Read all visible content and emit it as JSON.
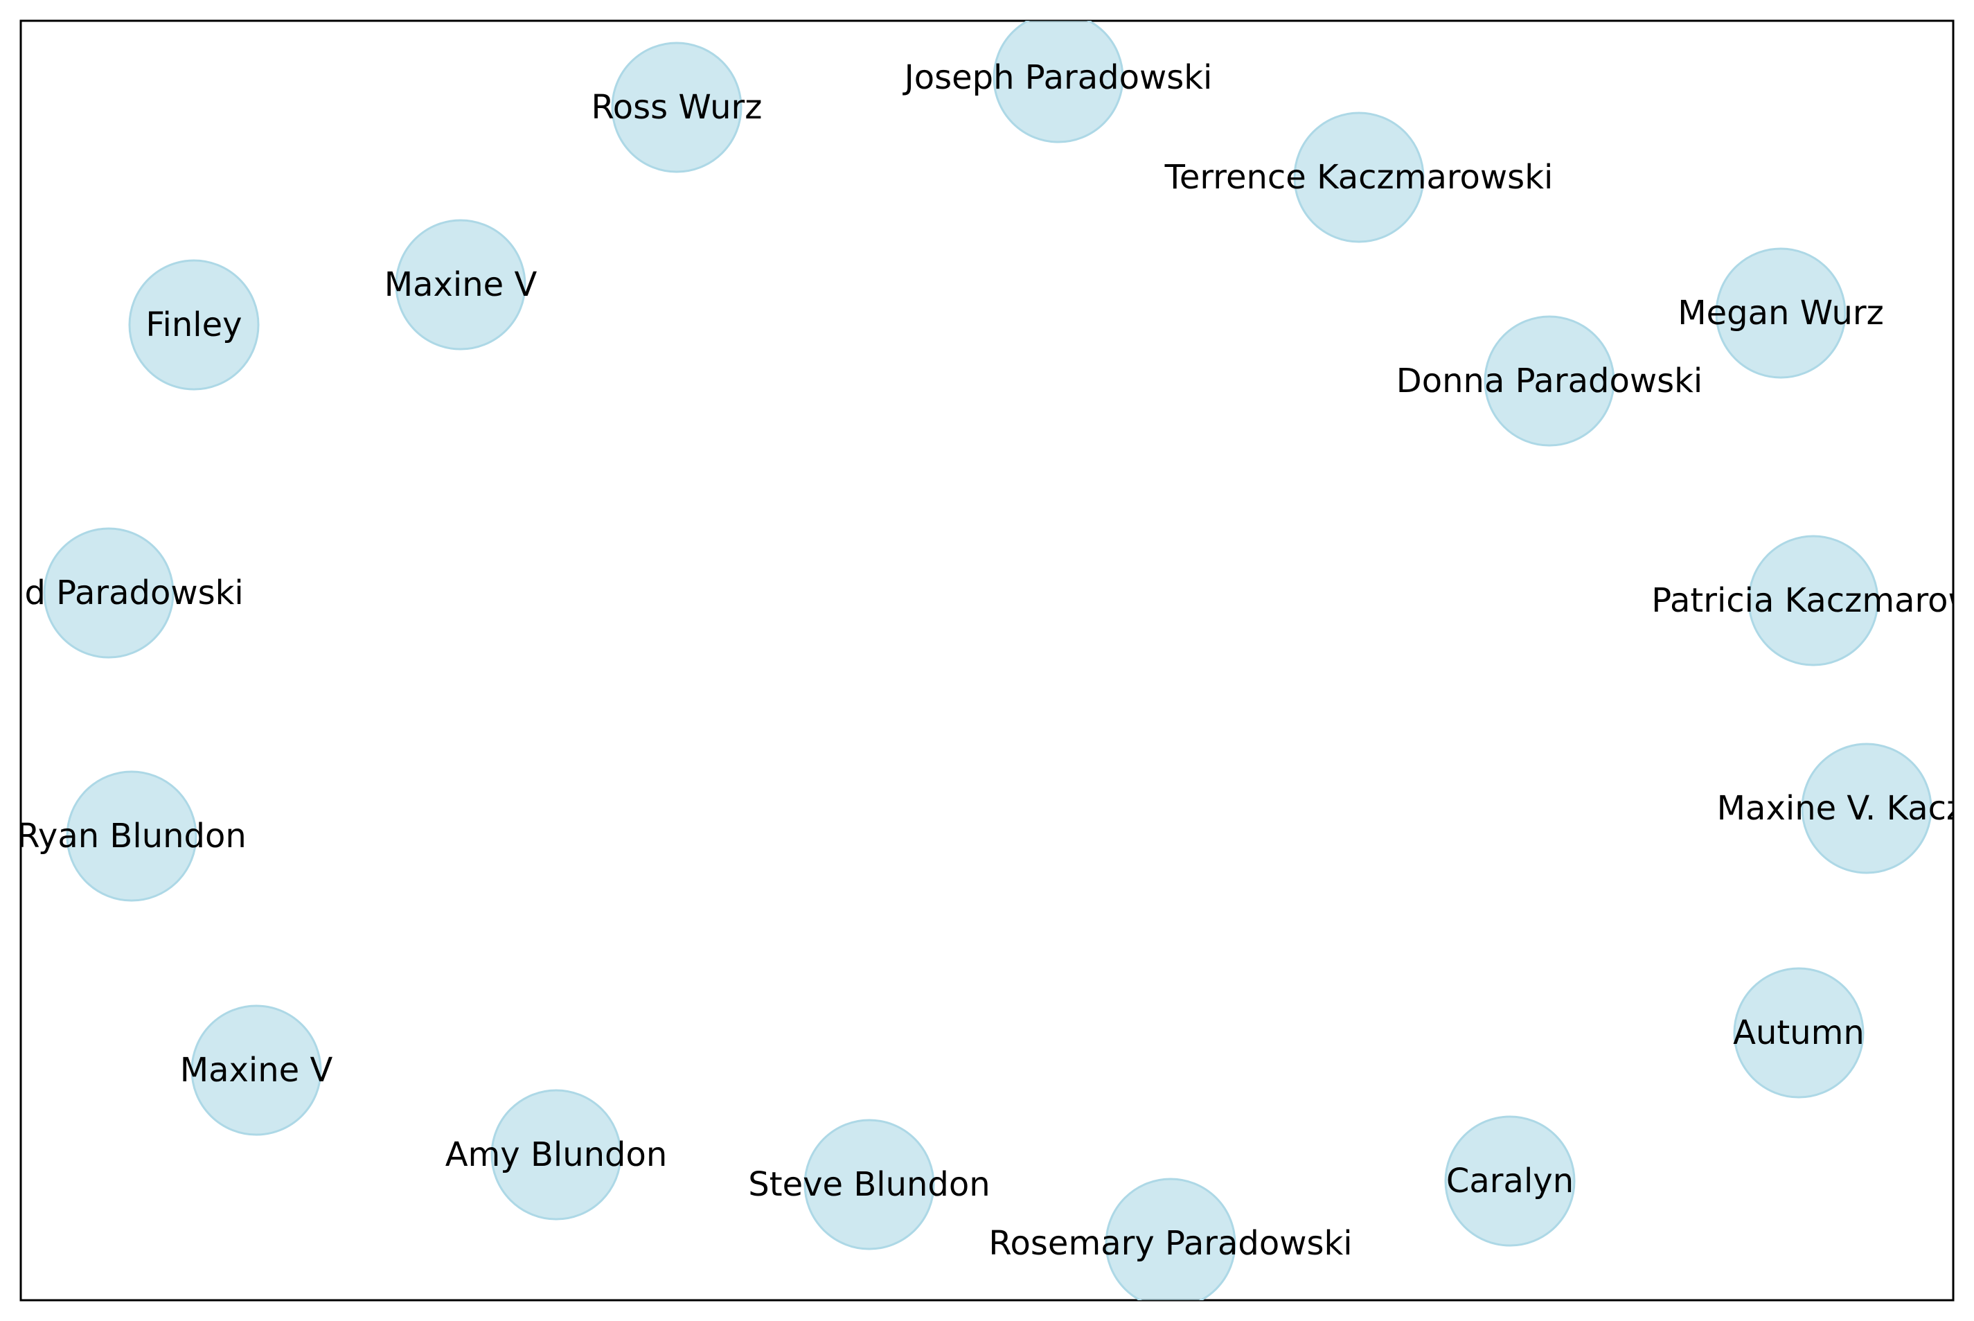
{
  "graph": {
    "node_color": "#add8e6",
    "nodes": [
      {
        "label": "Joseph Paradowski"
      },
      {
        "label": "Ross Wurz"
      },
      {
        "label": "Terrence Kaczmarowski"
      },
      {
        "label": "Maxine V"
      },
      {
        "label": "Finley"
      },
      {
        "label": "Megan Wurz"
      },
      {
        "label": "Donna Paradowski"
      },
      {
        "label": "nald Paradowski"
      },
      {
        "label": "Patricia Kaczmarow"
      },
      {
        "label": "Ryan Blundon"
      },
      {
        "label": "Maxine V. Kaczma"
      },
      {
        "label": "Autumn"
      },
      {
        "label": "Maxine V"
      },
      {
        "label": "Amy Blundon"
      },
      {
        "label": "Steve Blundon"
      },
      {
        "label": "Caralyn"
      },
      {
        "label": "Rosemary Paradowski"
      }
    ]
  }
}
